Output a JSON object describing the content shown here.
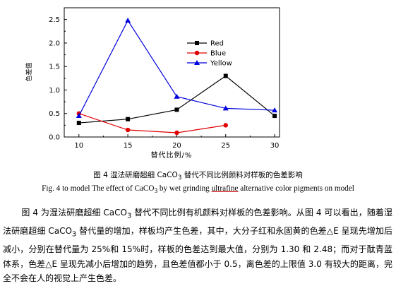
{
  "chart_data": {
    "type": "line",
    "x": [
      10,
      15,
      20,
      25,
      30
    ],
    "xlabel": "替代比例/%",
    "ylabel": "色差值",
    "xlim": [
      8.5,
      30.5
    ],
    "ylim": [
      0,
      2.75
    ],
    "xticks": [
      "10",
      "15",
      "20",
      "25",
      "30"
    ],
    "yticks": [
      "0.0",
      "0.5",
      "1.0",
      "1.5",
      "2.0",
      "2.5"
    ],
    "legend": {
      "position": "top-right",
      "entries": [
        "Red",
        "Blue",
        "Yellow"
      ]
    },
    "series": [
      {
        "name": "Red",
        "color": "#000000",
        "marker": "square",
        "values": [
          0.3,
          0.38,
          0.58,
          1.3,
          0.45
        ]
      },
      {
        "name": "Blue",
        "color": "#e00000",
        "marker": "circle",
        "values": [
          0.5,
          0.15,
          0.09,
          0.25,
          null
        ]
      },
      {
        "name": "Yellow",
        "color": "#0000e0",
        "marker": "triangle",
        "values": [
          0.45,
          2.48,
          0.86,
          0.61,
          0.57
        ]
      }
    ]
  },
  "captions": {
    "zh_pre": "图 4 湿法研磨超细 CaCO",
    "zh_sub": "3",
    "zh_post": " 替代不同比例颜料对样板的色差影响",
    "en_pre": "Fig. 4 to model The effect of CaCO",
    "en_sub": "3",
    "en_mid": " by wet grinding ",
    "en_ul": "ultrafine",
    "en_post": " alternative color pigments on model"
  },
  "paragraph": {
    "t1": "图 4 为湿法研磨超细 CaCO",
    "s1": "3",
    "t2": " 替代不同比例有机颜料对样板的色差影响。从图 4 可以看出，随着湿法研磨超细 CaCO",
    "s2": "3",
    "t3": " 替代量的增加，样板均产生色差，其中，大分子红和永固黄的色差△E 呈现先增加后减小，分别在替代量为 25%和 15%时，样板的色差达到最大值，分别为 1.30 和 2.48；而对于酞青蓝体系，色差△E 呈现先减小后增加的趋势，且色差值都小于 0.5，离色差的上限值 3.0 有较大的距离，完全不会在人的视觉上产生色差。"
  }
}
